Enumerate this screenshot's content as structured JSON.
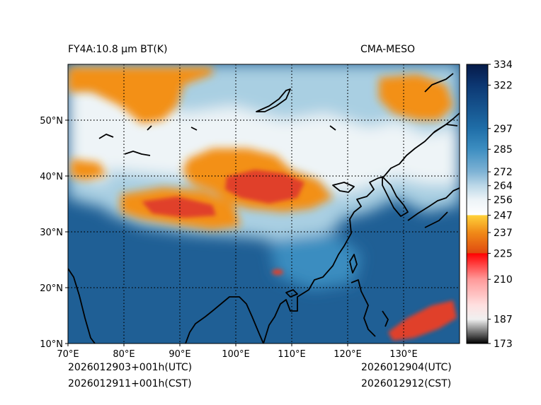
{
  "title_left": "FY4A:10.8 µm BT(K)",
  "title_right": "CMA-MESO",
  "footer": {
    "left_line1": "2026012903+001h(UTC)",
    "left_line2": "2026012911+001h(CST)",
    "right_line1": "2026012904(UTC)",
    "right_line2": "2026012912(CST)"
  },
  "map": {
    "lon_range": [
      70,
      140
    ],
    "lat_range": [
      10,
      60
    ],
    "lon_ticks": [
      {
        "value": 70,
        "label": "70°E"
      },
      {
        "value": 80,
        "label": "80°E"
      },
      {
        "value": 90,
        "label": "90°E"
      },
      {
        "value": 100,
        "label": "100°E"
      },
      {
        "value": 110,
        "label": "110°E"
      },
      {
        "value": 120,
        "label": "120°E"
      },
      {
        "value": 130,
        "label": "130°E"
      }
    ],
    "lat_ticks": [
      {
        "value": 10,
        "label": "10°N"
      },
      {
        "value": 20,
        "label": "20°N"
      },
      {
        "value": 30,
        "label": "30°N"
      },
      {
        "value": 40,
        "label": "40°N"
      },
      {
        "value": 50,
        "label": "50°N"
      }
    ],
    "colors": {
      "warm_deep": "#1f5f95",
      "warm": "#3b8dc0",
      "mid": "#a9cfe2",
      "cool": "#eef4f7",
      "cloud_orange": "#f39019",
      "cloud_red": "#e0402a",
      "coast": "#000000"
    }
  },
  "colorbar": {
    "min": 173,
    "max": 334,
    "ticks": [
      334,
      322,
      297,
      285,
      272,
      264,
      256,
      247,
      237,
      225,
      210,
      187,
      173
    ],
    "stops": [
      {
        "value": 173,
        "color": "#000000"
      },
      {
        "value": 180,
        "color": "#7a7a7a"
      },
      {
        "value": 187,
        "color": "#f0f0f0"
      },
      {
        "value": 195,
        "color": "#ffe0e0"
      },
      {
        "value": 210,
        "color": "#ff9a9a"
      },
      {
        "value": 225,
        "color": "#ff0000"
      },
      {
        "value": 225.1,
        "color": "#e04a10"
      },
      {
        "value": 237,
        "color": "#f08a18"
      },
      {
        "value": 247,
        "color": "#ffd23a"
      },
      {
        "value": 247.1,
        "color": "#ffffff"
      },
      {
        "value": 256,
        "color": "#ecf3f7"
      },
      {
        "value": 264,
        "color": "#bcd8e8"
      },
      {
        "value": 272,
        "color": "#7fb3d5"
      },
      {
        "value": 285,
        "color": "#3d8ec1"
      },
      {
        "value": 297,
        "color": "#1f6ea8"
      },
      {
        "value": 322,
        "color": "#0c3772"
      },
      {
        "value": 334,
        "color": "#061a48"
      }
    ]
  }
}
